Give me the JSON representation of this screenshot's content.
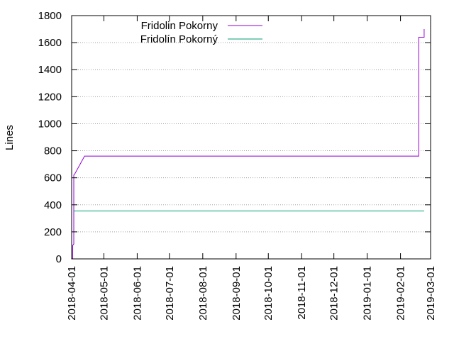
{
  "chart_data": {
    "type": "line",
    "ylabel": "Lines",
    "ylim": [
      0,
      1800
    ],
    "yticks": [
      0,
      200,
      400,
      600,
      800,
      1000,
      1200,
      1400,
      1600,
      1800
    ],
    "xlim": [
      "2018-04-01",
      "2019-03-01"
    ],
    "xticks": [
      "2018-04-01",
      "2018-05-01",
      "2018-06-01",
      "2018-07-01",
      "2018-08-01",
      "2018-09-01",
      "2018-10-01",
      "2018-11-01",
      "2018-12-01",
      "2019-01-01",
      "2019-02-01",
      "2019-03-01"
    ],
    "grid": "horizontal dotted",
    "legend_position": "top-left",
    "series": [
      {
        "name": "Fridolin Pokorny",
        "color": "#9400d3",
        "points": [
          [
            "2018-04-02",
            0
          ],
          [
            "2018-04-02",
            100
          ],
          [
            "2018-04-03",
            110
          ],
          [
            "2018-04-03",
            620
          ],
          [
            "2018-04-04",
            630
          ],
          [
            "2018-04-13",
            760
          ],
          [
            "2019-02-18",
            760
          ],
          [
            "2019-02-18",
            1640
          ],
          [
            "2019-02-23",
            1640
          ],
          [
            "2019-02-23",
            1700
          ]
        ]
      },
      {
        "name": "Fridolín Pokorný",
        "color": "#009e73",
        "points": [
          [
            "2018-04-03",
            355
          ],
          [
            "2019-02-23",
            355
          ]
        ]
      }
    ]
  }
}
